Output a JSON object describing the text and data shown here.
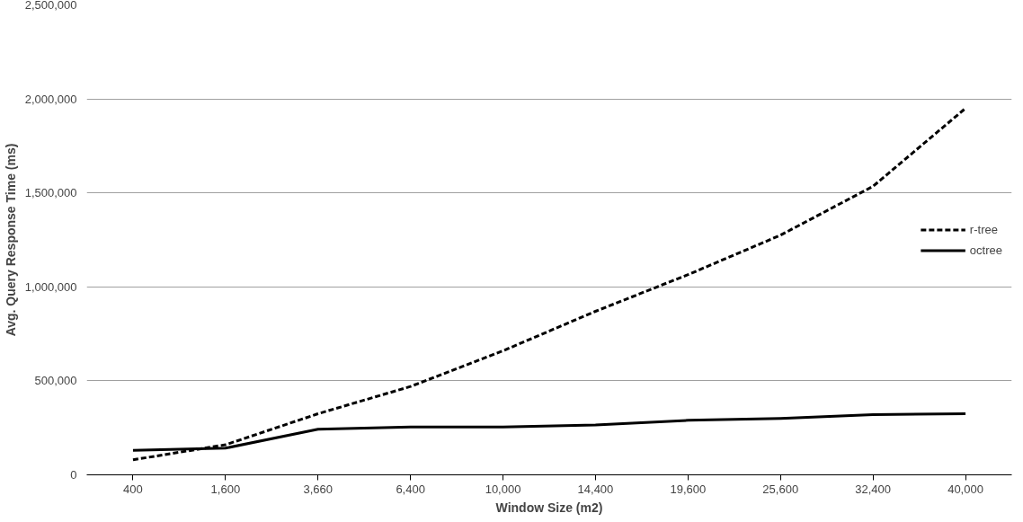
{
  "chart_data": {
    "type": "line",
    "xlabel": "Window Size (m2)",
    "ylabel": "Avg. Query Response Time (ms)",
    "categories": [
      "400",
      "1,600",
      "3,660",
      "6,400",
      "10,000",
      "14,400",
      "19,600",
      "25,600",
      "32,400",
      "40,000"
    ],
    "series": [
      {
        "name": "r-tree",
        "color": "#000000",
        "line_style": "dashed",
        "values": [
          80000,
          160000,
          325000,
          470000,
          660000,
          870000,
          1065000,
          1275000,
          1535000,
          1950000
        ]
      },
      {
        "name": "octree",
        "color": "#000000",
        "line_style": "solid",
        "values": [
          130000,
          142000,
          243000,
          255000,
          255000,
          265000,
          290000,
          300000,
          320000,
          325000
        ]
      }
    ],
    "ylim": [
      0,
      2500000
    ],
    "yticks": [
      0,
      {
        "value": 500000,
        "label": "500,000"
      },
      {
        "value": 1000000,
        "label": "1,000,000"
      },
      {
        "value": 1500000,
        "label": "1,500,000"
      },
      {
        "value": 2000000,
        "label": "2,000,000"
      },
      {
        "value": 2500000,
        "label": "2,500,000"
      }
    ],
    "grid": "y",
    "legend": "right",
    "marker": "none"
  }
}
